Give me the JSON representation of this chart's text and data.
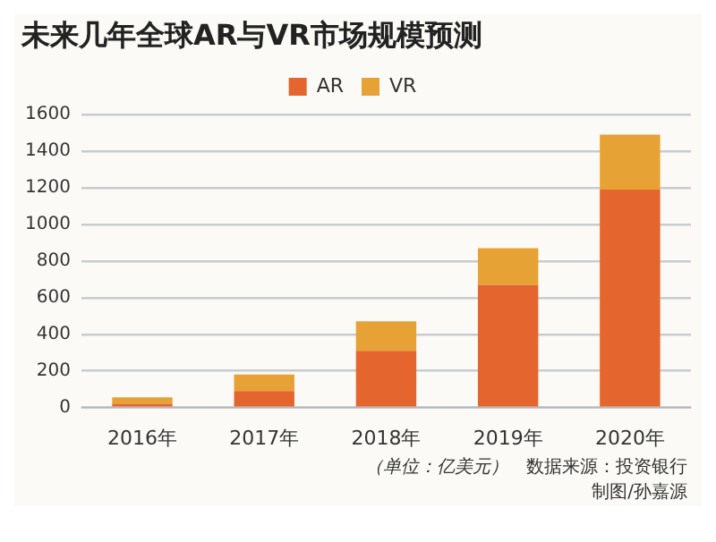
{
  "chart_data": {
    "type": "bar",
    "title": "未来几年全球AR与VR市场规模预测",
    "categories": [
      "2016年",
      "2017年",
      "2018年",
      "2019年",
      "2020年"
    ],
    "series": [
      {
        "name": "AR",
        "color": "#e5652e",
        "values": [
          20,
          90,
          310,
          670,
          1190
        ]
      },
      {
        "name": "VR",
        "color": "#e6a235",
        "values": [
          35,
          90,
          160,
          200,
          300
        ]
      }
    ],
    "stacked": true,
    "ylim": [
      0,
      1600
    ],
    "yticks": [
      0,
      200,
      400,
      600,
      800,
      1000,
      1200,
      1400,
      1600
    ],
    "grid": "y",
    "legend": "top",
    "annotations": [
      "（单位：亿美元）",
      "数据来源：投资银行",
      "制图/孙嘉源"
    ]
  }
}
